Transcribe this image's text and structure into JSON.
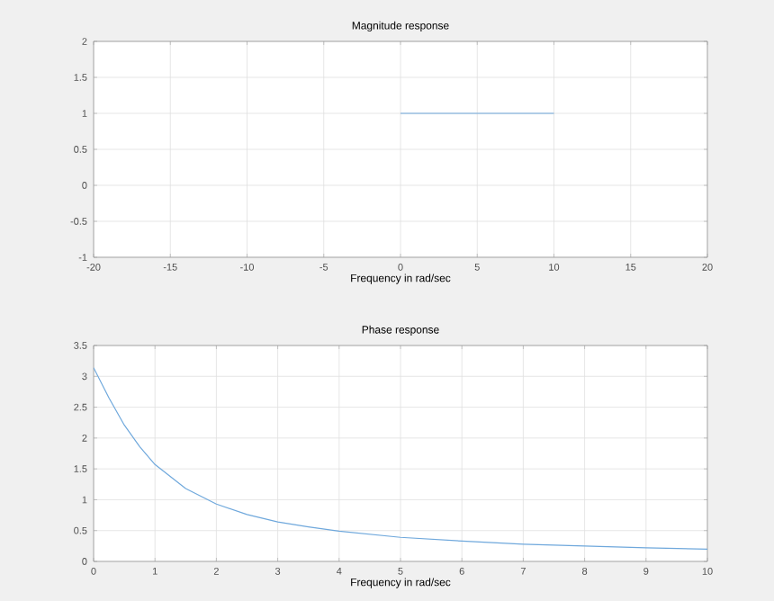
{
  "chart_data": [
    {
      "type": "line",
      "title": "Magnitude response",
      "xlabel": "Frequency in rad/sec",
      "x": [
        0,
        10
      ],
      "values": [
        1,
        1
      ],
      "color": "#6fa8dc",
      "xlim": [
        -20,
        20
      ],
      "ylim": [
        -1,
        2
      ],
      "xticks": [
        -20,
        -15,
        -10,
        -5,
        0,
        5,
        10,
        15,
        20
      ],
      "yticks": [
        -1,
        -0.5,
        0,
        0.5,
        1,
        1.5,
        2
      ],
      "grid": true
    },
    {
      "type": "line",
      "title": "Phase response",
      "xlabel": "Frequency in rad/sec",
      "x": [
        0,
        0.25,
        0.5,
        0.75,
        1,
        1.5,
        2,
        2.5,
        3,
        3.5,
        4,
        5,
        6,
        7,
        8,
        9,
        10
      ],
      "values": [
        3.14,
        2.65,
        2.21,
        1.86,
        1.57,
        1.18,
        0.93,
        0.76,
        0.64,
        0.56,
        0.49,
        0.39,
        0.33,
        0.28,
        0.25,
        0.22,
        0.2
      ],
      "color": "#6fa8dc",
      "xlim": [
        0,
        10
      ],
      "ylim": [
        0,
        3.5
      ],
      "xticks": [
        0,
        1,
        2,
        3,
        4,
        5,
        6,
        7,
        8,
        9,
        10
      ],
      "yticks": [
        0,
        0.5,
        1,
        1.5,
        2,
        2.5,
        3,
        3.5
      ],
      "grid": true
    }
  ]
}
